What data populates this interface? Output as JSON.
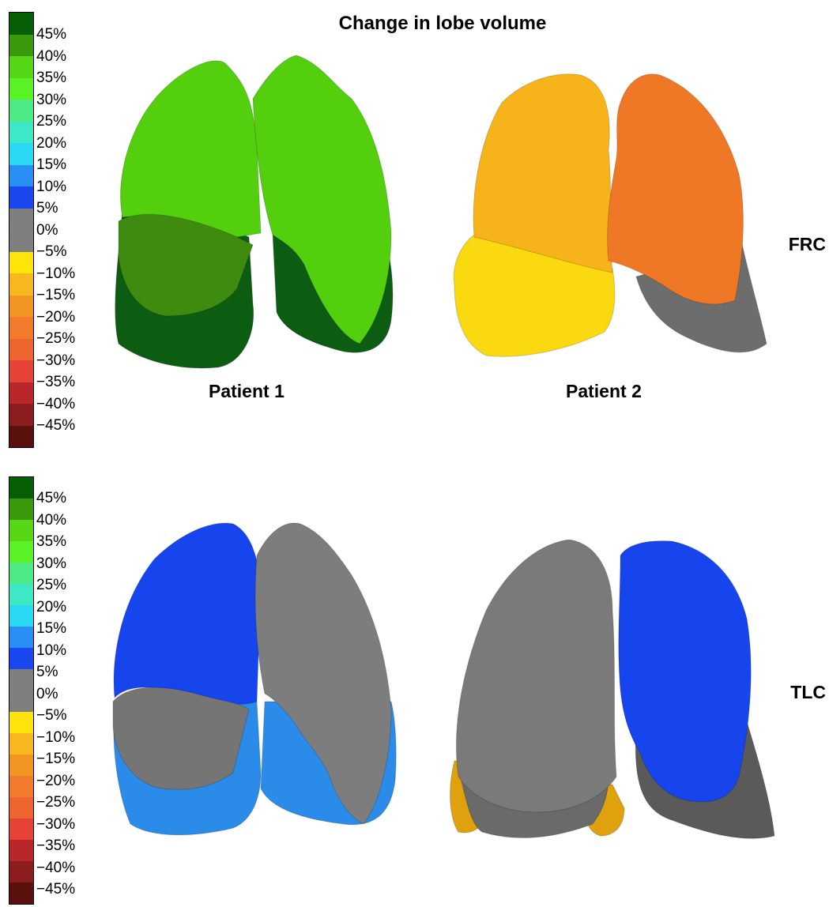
{
  "title": "Change in lobe volume",
  "colorbar": {
    "labels": [
      "45%",
      "40%",
      "35%",
      "30%",
      "25%",
      "20%",
      "15%",
      "10%",
      "5%",
      "0%",
      "−5%",
      "−10%",
      "−15%",
      "−20%",
      "−25%",
      "−30%",
      "−35%",
      "−40%",
      "−45%"
    ],
    "colors": [
      "#075f05",
      "#3a9a0c",
      "#56d614",
      "#58f225",
      "#4eea86",
      "#3ce8c6",
      "#2ad9f4",
      "#2a8ff4",
      "#1b47f0",
      "#7f7f7f",
      "#7f7f7f",
      "#ffe40b",
      "#f7b81f",
      "#f39522",
      "#f17a2c",
      "#ef6530",
      "#e54338",
      "#b9272b",
      "#8c1d1e",
      "#5a110d"
    ]
  },
  "panels": [
    {
      "row_label": "FRC",
      "patients": [
        {
          "label": "Patient 1",
          "lobe_colors": {
            "right_upper": "#53cf0e",
            "right_lower": "#0c5d12",
            "left_upper": "#53cf0e",
            "left_lower": "#0c5d12",
            "right_middle": "#3e8b0f"
          }
        },
        {
          "label": "Patient 2",
          "lobe_colors": {
            "right_upper": "#f6b41a",
            "right_lower": "#fbd910",
            "left_upper": "#ee7826",
            "left_lower": "#6d6d6d",
            "right_middle": "#f6b41a"
          }
        }
      ]
    },
    {
      "row_label": "TLC",
      "patients": [
        {
          "label": "",
          "lobe_colors": {
            "right_upper": "#1645ee",
            "right_lower": "#2b8be8",
            "left_upper": "#7d7d7d",
            "left_lower": "#2b8be8",
            "right_middle": "#757575"
          }
        },
        {
          "label": "",
          "lobe_colors": {
            "right_upper": "#7a7a7a",
            "right_lower": "#6a6a6a",
            "left_upper": "#1645ee",
            "left_lower": "#5a5a5a",
            "right_middle": "#e0a10f"
          }
        }
      ]
    }
  ]
}
